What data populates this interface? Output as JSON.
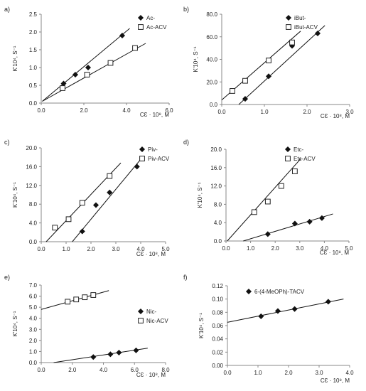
{
  "chart_data": [
    {
      "panel_label": "a)",
      "type": "scatter",
      "ylabel": "K'10⁴, S⁻¹",
      "xlabel": "CƐ · 10⁸, M",
      "xlim": [
        0,
        6
      ],
      "ylim": [
        0,
        2.5
      ],
      "xticks": [
        0,
        2,
        4,
        6
      ],
      "yticks": [
        0,
        0.5,
        1,
        1.5,
        2,
        2.5
      ],
      "xtick_labels": [
        "0.0",
        "2.0",
        "4.0",
        "6.0"
      ],
      "ytick_labels": [
        "0.0",
        "0.5",
        "1.0",
        "1.5",
        "2.0",
        "2.5"
      ],
      "legend_position": "top-right",
      "series": [
        {
          "name": "Ac-",
          "marker": "diamond",
          "x": [
            1.05,
            1.6,
            2.2,
            3.8
          ],
          "y": [
            0.55,
            0.8,
            1.0,
            1.9
          ],
          "fit": [
            [
              0.05,
              0.05
            ],
            [
              4.15,
              2.1
            ]
          ]
        },
        {
          "name": "Ac-ACV",
          "marker": "square",
          "x": [
            1.0,
            2.15,
            3.25,
            4.4
          ],
          "y": [
            0.42,
            0.8,
            1.13,
            1.55
          ],
          "fit": [
            [
              0.05,
              0.05
            ],
            [
              4.9,
              1.68
            ]
          ]
        }
      ]
    },
    {
      "panel_label": "b)",
      "type": "scatter",
      "ylabel": "K'10⁴, S⁻¹",
      "xlabel": "CƐ · 10⁸, M",
      "xlim": [
        0,
        3
      ],
      "ylim": [
        0,
        80
      ],
      "xticks": [
        0,
        1,
        2,
        3
      ],
      "yticks": [
        0,
        20,
        40,
        60,
        80
      ],
      "xtick_labels": [
        "0.0",
        "1.0",
        "2.0",
        "3.0"
      ],
      "ytick_labels": [
        "0.0",
        "20.0",
        "40.0",
        "60.0",
        "80.0"
      ],
      "legend_position": "top-right",
      "series": [
        {
          "name": "iBut-",
          "marker": "diamond",
          "x": [
            0.55,
            1.1,
            1.65,
            2.25
          ],
          "y": [
            5,
            25,
            52,
            63
          ],
          "fit": [
            [
              0.4,
              0
            ],
            [
              2.42,
              70
            ]
          ]
        },
        {
          "name": "iBut-ACV",
          "marker": "square",
          "x": [
            0.25,
            0.55,
            1.1,
            1.65
          ],
          "y": [
            12,
            21,
            39,
            55
          ],
          "fit": [
            [
              0,
              4
            ],
            [
              1.85,
              65
            ]
          ]
        }
      ]
    },
    {
      "panel_label": "c)",
      "type": "scatter",
      "ylabel": "K'10⁴, S⁻¹",
      "xlabel": "CƐ · 10⁸, M",
      "xlim": [
        0,
        5
      ],
      "ylim": [
        0,
        20
      ],
      "xticks": [
        0,
        1,
        2,
        3,
        4,
        5
      ],
      "yticks": [
        0,
        4,
        8,
        12,
        16,
        20
      ],
      "xtick_labels": [
        "0.0",
        "1.0",
        "2.0",
        "3.0",
        "4.0",
        "5.0"
      ],
      "ytick_labels": [
        "0.0",
        "4.0",
        "8.0",
        "12.0",
        "16.0",
        "20.0"
      ],
      "legend_position": "top-right",
      "series": [
        {
          "name": "Piv-",
          "marker": "diamond",
          "x": [
            1.65,
            2.2,
            2.75,
            3.85
          ],
          "y": [
            2.2,
            7.8,
            10.5,
            16
          ],
          "fit": [
            [
              1.25,
              0
            ],
            [
              4.1,
              18.2
            ]
          ]
        },
        {
          "name": "Piv-ACV",
          "marker": "square",
          "x": [
            0.55,
            1.1,
            1.65,
            2.75
          ],
          "y": [
            3.0,
            4.8,
            8.3,
            14
          ],
          "fit": [
            [
              0.2,
              0
            ],
            [
              3.2,
              16.8
            ]
          ]
        }
      ]
    },
    {
      "panel_label": "d)",
      "type": "scatter",
      "ylabel": "K'10⁴, S⁻¹",
      "xlabel": "CƐ · 10⁸, M",
      "xlim": [
        0,
        5
      ],
      "ylim": [
        0,
        20
      ],
      "xticks": [
        0,
        1,
        2,
        3,
        4,
        5
      ],
      "yticks": [
        0,
        4,
        8,
        12,
        16,
        20
      ],
      "xtick_labels": [
        "0.0",
        "1.0",
        "2.0",
        "3.0",
        "4.0",
        "5.0"
      ],
      "ytick_labels": [
        "0.0",
        "4.0",
        "8.0",
        "12.0",
        "16.0",
        "20.0"
      ],
      "legend_position": "top-right",
      "series": [
        {
          "name": "Etc-",
          "marker": "diamond",
          "x": [
            1.7,
            2.8,
            3.4,
            3.9
          ],
          "y": [
            1.5,
            3.8,
            4.2,
            5.0
          ],
          "fit": [
            [
              0.7,
              0
            ],
            [
              4.35,
              5.9
            ]
          ]
        },
        {
          "name": "Etc-ACV",
          "marker": "square",
          "x": [
            1.15,
            1.7,
            2.25,
            2.8
          ],
          "y": [
            6.3,
            8.6,
            12,
            15.2
          ],
          "fit": [
            [
              0.05,
              0
            ],
            [
              3.05,
              18
            ]
          ]
        }
      ]
    },
    {
      "panel_label": "e)",
      "type": "scatter",
      "ylabel": "K'10⁴, S⁻¹",
      "xlabel": "CƐ · 10⁸, M",
      "xlim": [
        0,
        8
      ],
      "ylim": [
        0,
        7
      ],
      "xticks": [
        0,
        2,
        4,
        6,
        8
      ],
      "yticks": [
        0,
        1,
        2,
        3,
        4,
        5,
        6,
        7
      ],
      "xtick_labels": [
        "0.0",
        "2.0",
        "4.0",
        "6.0",
        "8.0"
      ],
      "ytick_labels": [
        "0.0",
        "1.0",
        "2.0",
        "3.0",
        "4.0",
        "5.0",
        "6.0",
        "7.0"
      ],
      "legend_position": "right",
      "series": [
        {
          "name": "Nic-",
          "marker": "diamond",
          "x": [
            3.35,
            4.45,
            5.0,
            6.1
          ],
          "y": [
            0.5,
            0.75,
            0.9,
            1.1
          ],
          "fit": [
            [
              0.8,
              0
            ],
            [
              6.85,
              1.3
            ]
          ]
        },
        {
          "name": "Nic-ACV",
          "marker": "square",
          "x": [
            1.7,
            2.25,
            2.8,
            3.35
          ],
          "y": [
            5.5,
            5.7,
            5.9,
            6.1
          ],
          "fit": [
            [
              0,
              4.8
            ],
            [
              4.35,
              6.5
            ]
          ]
        }
      ]
    },
    {
      "panel_label": "f)",
      "type": "scatter",
      "ylabel": "K'10⁴, S⁻¹",
      "xlabel": "CƐ · 10⁸, M",
      "xlim": [
        0,
        4
      ],
      "ylim": [
        0,
        0.12
      ],
      "xticks": [
        0,
        1,
        2,
        3,
        4
      ],
      "yticks": [
        0,
        0.02,
        0.04,
        0.06,
        0.08,
        0.1,
        0.12
      ],
      "xtick_labels": [
        "0.0",
        "1.0",
        "2.0",
        "3.0",
        "4.0"
      ],
      "ytick_labels": [
        "0.00",
        "0.02",
        "0.04",
        "0.06",
        "0.08",
        "0.10",
        "0.12"
      ],
      "legend_position": "top",
      "series": [
        {
          "name": "6-(4-MeOPh)-TACV",
          "marker": "diamond",
          "x": [
            1.1,
            1.65,
            2.2,
            3.3
          ],
          "y": [
            0.074,
            0.082,
            0.085,
            0.096
          ],
          "fit": [
            [
              0,
              0.065
            ],
            [
              3.8,
              0.1
            ]
          ]
        }
      ]
    }
  ]
}
